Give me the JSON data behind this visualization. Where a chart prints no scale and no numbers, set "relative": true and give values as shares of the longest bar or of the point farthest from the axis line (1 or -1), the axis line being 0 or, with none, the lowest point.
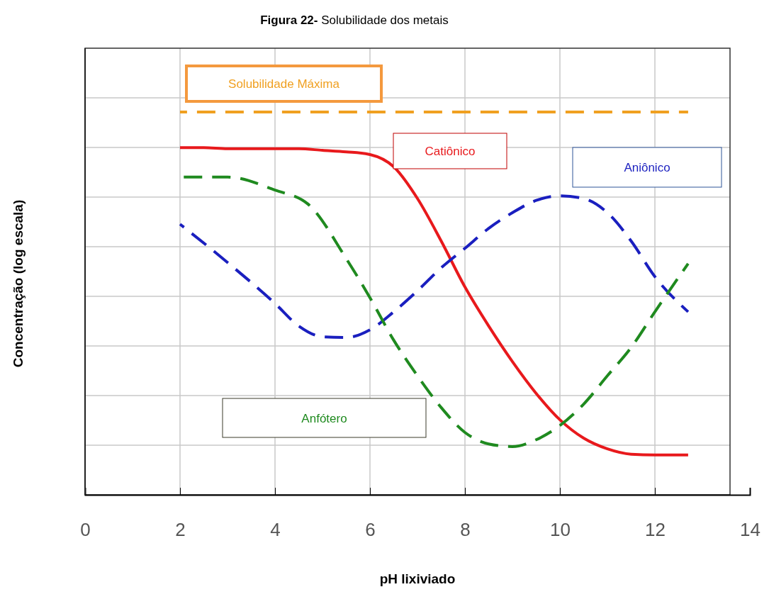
{
  "chart_data": {
    "type": "line",
    "title": "Figura 22- Solubilidade dos metais",
    "xlabel": "pH lixiviado",
    "ylabel": "Concentração (log escala)",
    "relative": true,
    "xlim": [
      0,
      14
    ],
    "xticks": [
      0,
      2,
      4,
      6,
      8,
      10,
      12,
      14
    ],
    "grid": true,
    "legend": false,
    "series": [
      {
        "name": "Solubilidade Máxima",
        "color": "#f0a020",
        "line_style": "dashed",
        "x": [
          2,
          12.7
        ],
        "values": [
          1,
          1
        ]
      },
      {
        "name": "Catiônico",
        "color": "#e8191c",
        "line_style": "solid",
        "x": [
          2,
          2.5,
          3,
          3.5,
          4,
          4.5,
          5,
          5.5,
          6,
          6.5,
          7,
          7.5,
          8,
          8.5,
          9,
          9.5,
          10,
          10.5,
          11,
          11.5,
          12,
          12.7
        ],
        "values": [
          0.907,
          0.907,
          0.904,
          0.904,
          0.904,
          0.904,
          0.9,
          0.896,
          0.889,
          0.857,
          0.774,
          0.663,
          0.543,
          0.441,
          0.348,
          0.265,
          0.196,
          0.148,
          0.12,
          0.106,
          0.104,
          0.104
        ]
      },
      {
        "name": "Aniônico",
        "color": "#1a1fbf",
        "line_style": "dashed",
        "x": [
          2,
          3,
          4,
          4.5,
          5,
          5.5,
          6,
          6.5,
          7,
          7.5,
          8,
          8.5,
          9,
          9.5,
          10,
          10.5,
          11,
          11.5,
          12,
          12.7
        ],
        "values": [
          0.707,
          0.607,
          0.5,
          0.441,
          0.413,
          0.411,
          0.431,
          0.478,
          0.533,
          0.593,
          0.644,
          0.696,
          0.737,
          0.769,
          0.781,
          0.774,
          0.737,
          0.663,
          0.57,
          0.478
        ]
      },
      {
        "name": "Anfótero",
        "color": "#1f8a1f",
        "line_style": "dashed",
        "x": [
          2,
          3,
          4,
          4.7,
          5.5,
          6,
          6.5,
          7,
          7.5,
          8,
          8.5,
          9,
          9.5,
          10,
          10.5,
          11,
          11.5,
          12,
          12.7
        ],
        "values": [
          0.83,
          0.83,
          0.796,
          0.759,
          0.617,
          0.515,
          0.404,
          0.311,
          0.228,
          0.163,
          0.133,
          0.126,
          0.144,
          0.181,
          0.237,
          0.311,
          0.385,
          0.478,
          0.604
        ]
      }
    ]
  }
}
